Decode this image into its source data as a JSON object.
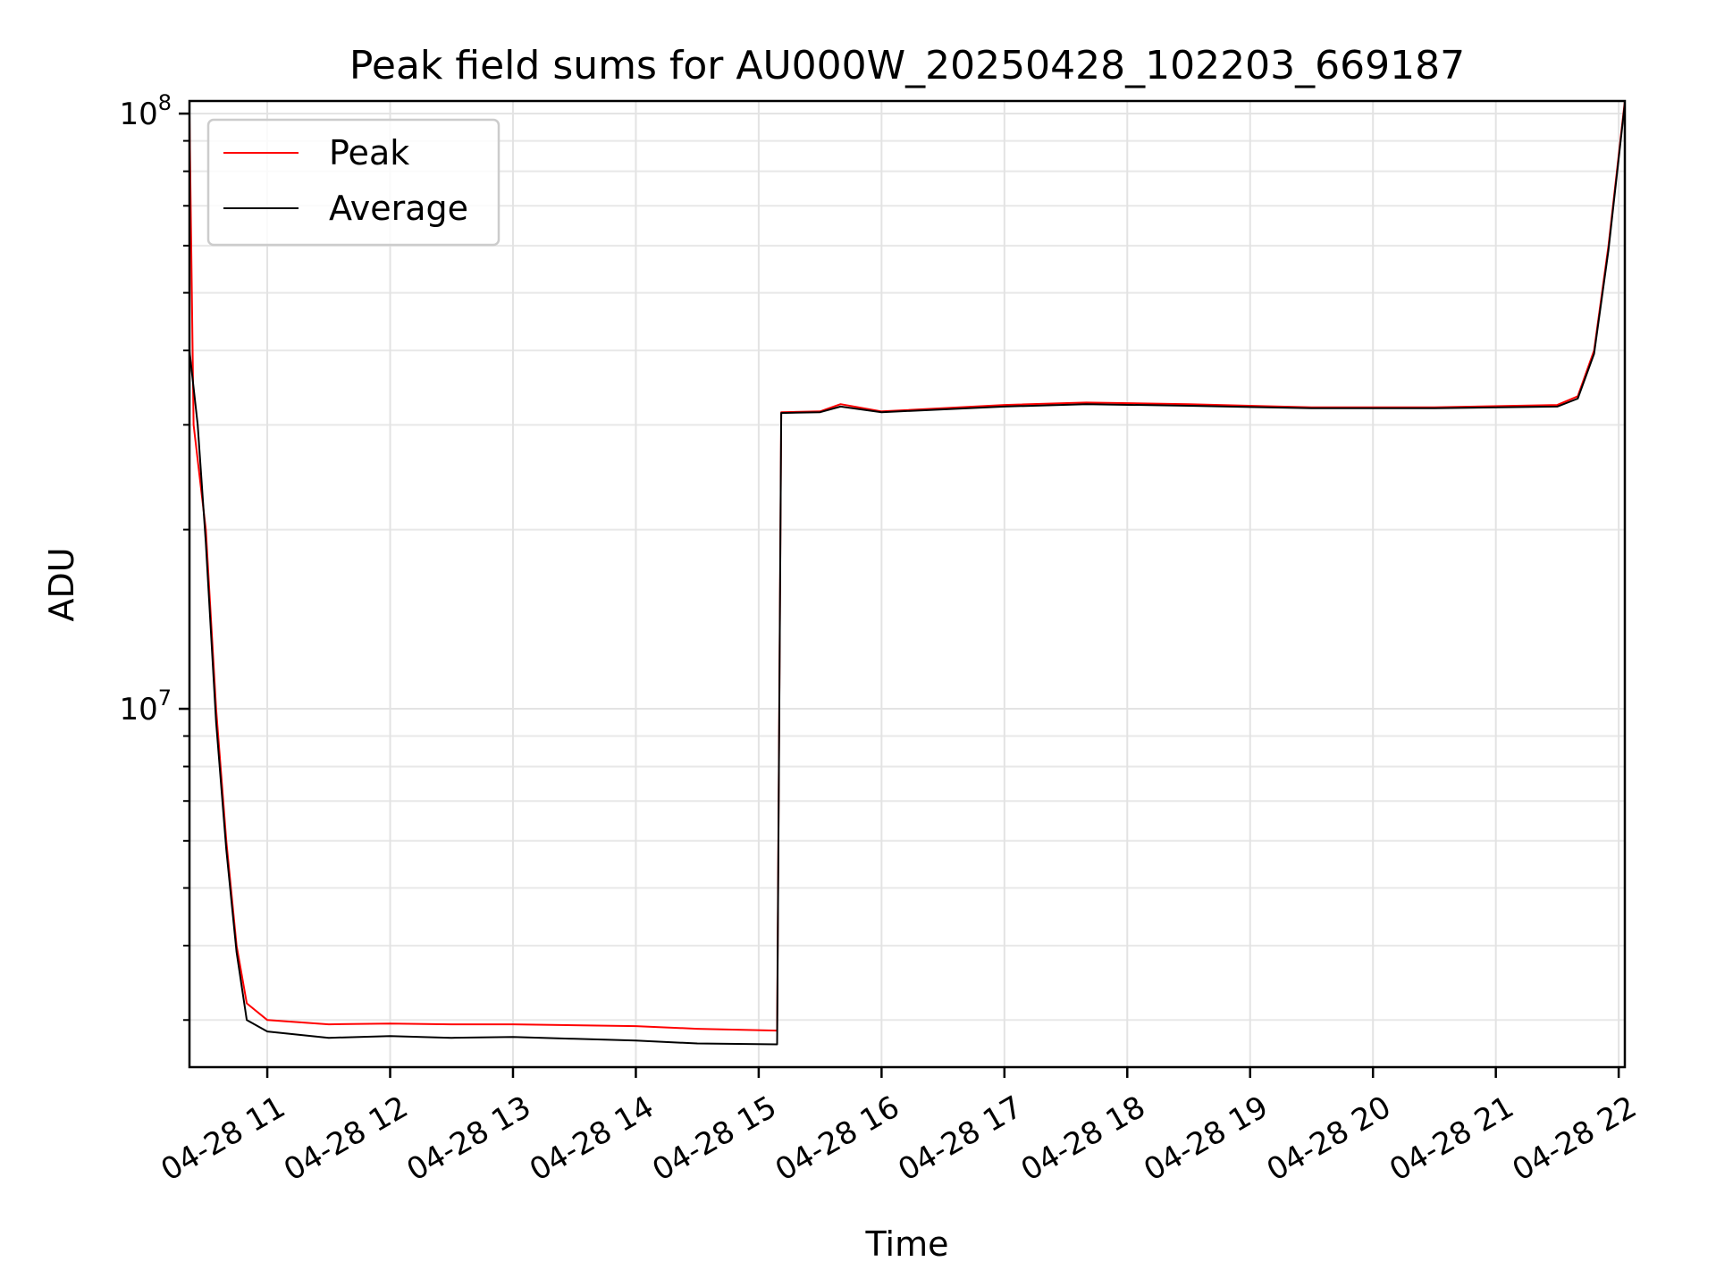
{
  "chart_data": {
    "type": "line",
    "title": "Peak field sums for AU000W_20250428_102203_669187",
    "xlabel": "Time",
    "ylabel": "ADU",
    "y_scale": "log",
    "ylim": [
      2500000,
      105000000
    ],
    "xlim": [
      "2025-04-28 10:22",
      "2025-04-28 22:03"
    ],
    "x_ticks": [
      "04-28 11",
      "04-28 12",
      "04-28 13",
      "04-28 14",
      "04-28 15",
      "04-28 16",
      "04-28 17",
      "04-28 18",
      "04-28 19",
      "04-28 20",
      "04-28 21",
      "04-28 22"
    ],
    "y_tick_labels": [
      {
        "value": 10000000,
        "base": "10",
        "exp": "7"
      },
      {
        "value": 100000000,
        "base": "10",
        "exp": "8"
      }
    ],
    "grid": true,
    "legend": "upper-left",
    "series": [
      {
        "name": "Peak",
        "color": "#ff0000",
        "x": [
          "2025-04-28 10:22",
          "2025-04-28 10:24",
          "2025-04-28 10:30",
          "2025-04-28 10:35",
          "2025-04-28 10:40",
          "2025-04-28 10:45",
          "2025-04-28 10:50",
          "2025-04-28 11:00",
          "2025-04-28 11:30",
          "2025-04-28 12:00",
          "2025-04-28 12:30",
          "2025-04-28 13:00",
          "2025-04-28 13:30",
          "2025-04-28 14:00",
          "2025-04-28 14:30",
          "2025-04-28 15:09",
          "2025-04-28 15:11",
          "2025-04-28 15:30",
          "2025-04-28 15:40",
          "2025-04-28 16:00",
          "2025-04-28 17:00",
          "2025-04-28 17:40",
          "2025-04-28 18:30",
          "2025-04-28 19:30",
          "2025-04-28 20:30",
          "2025-04-28 21:30",
          "2025-04-28 21:40",
          "2025-04-28 21:48",
          "2025-04-28 21:55",
          "2025-04-28 22:03"
        ],
        "y": [
          100000000,
          30000000,
          20000000,
          10000000,
          6000000,
          4000000,
          3200000,
          3000000,
          2950000,
          2960000,
          2950000,
          2950000,
          2940000,
          2930000,
          2900000,
          2880000,
          31500000,
          31600000,
          32500000,
          31600000,
          32400000,
          32700000,
          32500000,
          32100000,
          32100000,
          32400000,
          33500000,
          40000000,
          60000000,
          105000000
        ]
      },
      {
        "name": "Average",
        "color": "#000000",
        "x": [
          "2025-04-28 10:22",
          "2025-04-28 10:26",
          "2025-04-28 10:30",
          "2025-04-28 10:35",
          "2025-04-28 10:40",
          "2025-04-28 10:45",
          "2025-04-28 10:50",
          "2025-04-28 11:00",
          "2025-04-28 11:30",
          "2025-04-28 12:00",
          "2025-04-28 12:30",
          "2025-04-28 13:00",
          "2025-04-28 13:30",
          "2025-04-28 14:00",
          "2025-04-28 14:30",
          "2025-04-28 15:09",
          "2025-04-28 15:11",
          "2025-04-28 15:30",
          "2025-04-28 15:40",
          "2025-04-28 16:00",
          "2025-04-28 17:00",
          "2025-04-28 17:40",
          "2025-04-28 18:30",
          "2025-04-28 19:30",
          "2025-04-28 20:30",
          "2025-04-28 21:30",
          "2025-04-28 21:40",
          "2025-04-28 21:48",
          "2025-04-28 21:55",
          "2025-04-28 22:03"
        ],
        "y": [
          40000000,
          30000000,
          19000000,
          9500000,
          5800000,
          3900000,
          3000000,
          2870000,
          2800000,
          2820000,
          2800000,
          2810000,
          2790000,
          2770000,
          2740000,
          2730000,
          31400000,
          31500000,
          32200000,
          31500000,
          32200000,
          32500000,
          32300000,
          32000000,
          32000000,
          32200000,
          33200000,
          39500000,
          59000000,
          104000000
        ]
      }
    ]
  }
}
